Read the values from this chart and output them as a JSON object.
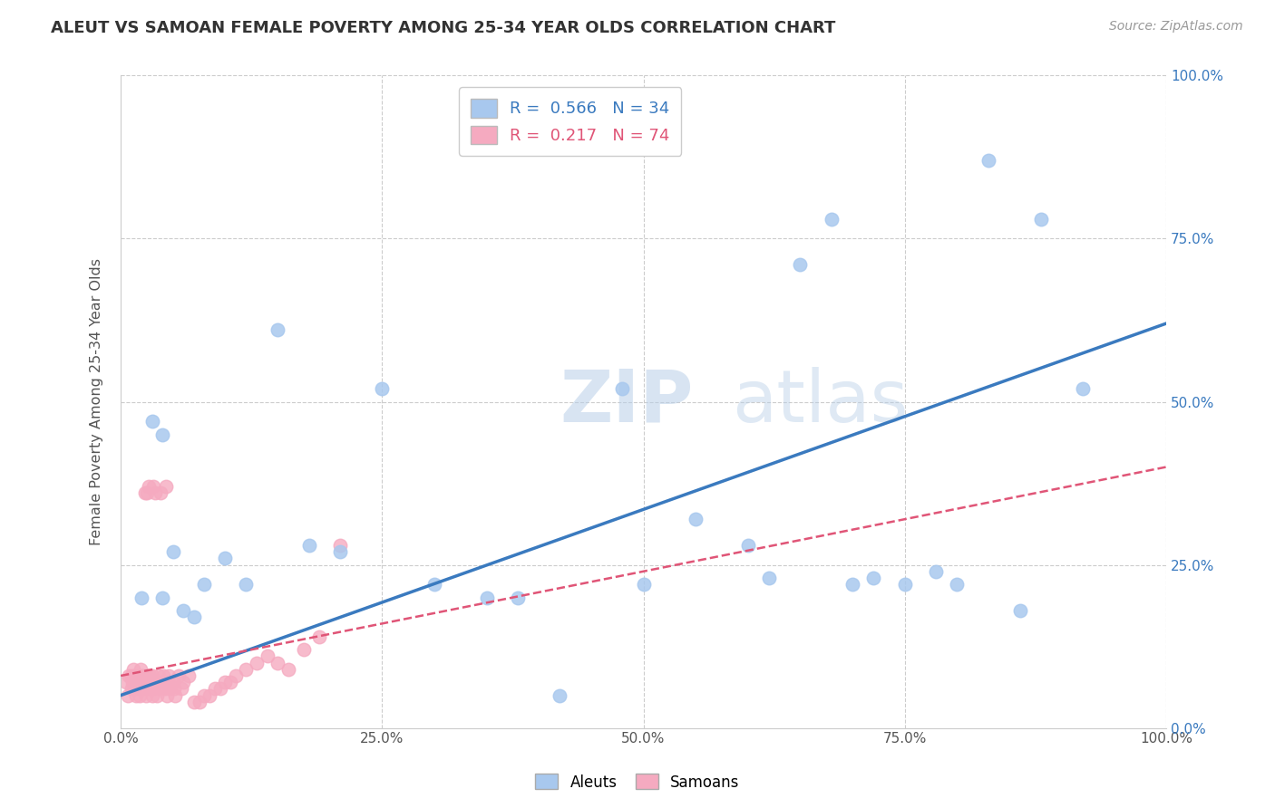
{
  "title": "ALEUT VS SAMOAN FEMALE POVERTY AMONG 25-34 YEAR OLDS CORRELATION CHART",
  "source": "Source: ZipAtlas.com",
  "ylabel": "Female Poverty Among 25-34 Year Olds",
  "xlim": [
    0,
    1
  ],
  "ylim": [
    0,
    1
  ],
  "xtick_labels": [
    "0.0%",
    "25.0%",
    "50.0%",
    "75.0%",
    "100.0%"
  ],
  "ytick_labels": [
    "0.0%",
    "25.0%",
    "50.0%",
    "75.0%",
    "100.0%"
  ],
  "aleut_color": "#a8c8ee",
  "samoan_color": "#f5aac0",
  "aleut_line_color": "#3a7abf",
  "samoan_line_color": "#e05577",
  "aleut_R": 0.566,
  "aleut_N": 34,
  "samoan_R": 0.217,
  "samoan_N": 74,
  "background_color": "#ffffff",
  "grid_color": "#cccccc",
  "watermark_zip": "ZIP",
  "watermark_atlas": "atlas",
  "aleut_x": [
    0.02,
    0.03,
    0.04,
    0.04,
    0.05,
    0.06,
    0.07,
    0.08,
    0.1,
    0.12,
    0.15,
    0.18,
    0.21,
    0.25,
    0.3,
    0.35,
    0.38,
    0.42,
    0.48,
    0.5,
    0.55,
    0.6,
    0.62,
    0.65,
    0.68,
    0.7,
    0.72,
    0.75,
    0.78,
    0.8,
    0.83,
    0.86,
    0.88,
    0.92
  ],
  "aleut_y": [
    0.2,
    0.47,
    0.45,
    0.2,
    0.27,
    0.18,
    0.17,
    0.22,
    0.26,
    0.22,
    0.61,
    0.28,
    0.27,
    0.52,
    0.22,
    0.2,
    0.2,
    0.05,
    0.52,
    0.22,
    0.32,
    0.28,
    0.23,
    0.71,
    0.78,
    0.22,
    0.23,
    0.22,
    0.24,
    0.22,
    0.87,
    0.18,
    0.78,
    0.52
  ],
  "samoan_x": [
    0.005,
    0.007,
    0.008,
    0.01,
    0.01,
    0.011,
    0.012,
    0.013,
    0.014,
    0.015,
    0.015,
    0.016,
    0.017,
    0.018,
    0.019,
    0.02,
    0.02,
    0.02,
    0.021,
    0.022,
    0.022,
    0.023,
    0.024,
    0.025,
    0.025,
    0.025,
    0.026,
    0.027,
    0.028,
    0.028,
    0.029,
    0.03,
    0.03,
    0.03,
    0.031,
    0.032,
    0.033,
    0.034,
    0.035,
    0.036,
    0.037,
    0.038,
    0.04,
    0.041,
    0.042,
    0.043,
    0.044,
    0.045,
    0.046,
    0.047,
    0.05,
    0.051,
    0.052,
    0.055,
    0.058,
    0.06,
    0.065,
    0.07,
    0.075,
    0.08,
    0.085,
    0.09,
    0.095,
    0.1,
    0.105,
    0.11,
    0.12,
    0.13,
    0.14,
    0.15,
    0.16,
    0.175,
    0.19,
    0.21
  ],
  "samoan_y": [
    0.07,
    0.05,
    0.08,
    0.06,
    0.08,
    0.07,
    0.09,
    0.08,
    0.06,
    0.05,
    0.07,
    0.08,
    0.06,
    0.05,
    0.09,
    0.06,
    0.07,
    0.08,
    0.07,
    0.06,
    0.08,
    0.36,
    0.05,
    0.07,
    0.36,
    0.08,
    0.06,
    0.37,
    0.07,
    0.08,
    0.06,
    0.05,
    0.07,
    0.08,
    0.37,
    0.06,
    0.36,
    0.07,
    0.05,
    0.08,
    0.06,
    0.36,
    0.07,
    0.08,
    0.06,
    0.37,
    0.05,
    0.07,
    0.08,
    0.06,
    0.07,
    0.06,
    0.05,
    0.08,
    0.06,
    0.07,
    0.08,
    0.04,
    0.04,
    0.05,
    0.05,
    0.06,
    0.06,
    0.07,
    0.07,
    0.08,
    0.09,
    0.1,
    0.11,
    0.1,
    0.09,
    0.12,
    0.14,
    0.28
  ]
}
